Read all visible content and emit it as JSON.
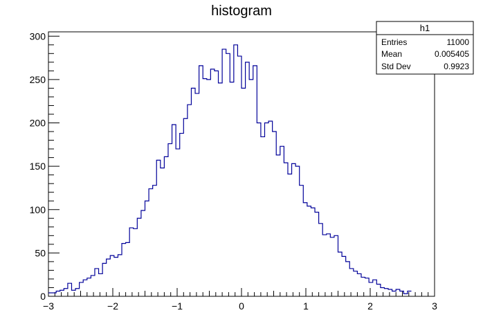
{
  "chart_data": {
    "type": "histogram",
    "title": "histogram",
    "xlabel": "",
    "ylabel": "",
    "xlim": [
      -3,
      3
    ],
    "ylim": [
      0,
      305
    ],
    "bin_width": 0.06,
    "bin_edges_start": -3,
    "x_ticks": [
      -3,
      -2,
      -1,
      0,
      1,
      2,
      3
    ],
    "x_tick_labels": [
      "−3",
      "−2",
      "−1",
      "0",
      "1",
      "2",
      "3"
    ],
    "y_ticks": [
      0,
      50,
      100,
      150,
      200,
      250,
      300
    ],
    "y_tick_labels": [
      "0",
      "50",
      "100",
      "150",
      "200",
      "250",
      "300"
    ],
    "line_color": "#000099",
    "values": [
      4,
      4,
      6,
      7,
      9,
      15,
      7,
      9,
      16,
      19,
      21,
      24,
      32,
      26,
      38,
      43,
      47,
      45,
      48,
      61,
      62,
      79,
      78,
      90,
      99,
      110,
      124,
      128,
      157,
      148,
      161,
      176,
      198,
      170,
      188,
      205,
      221,
      240,
      234,
      266,
      251,
      250,
      262,
      260,
      246,
      285,
      280,
      247,
      290,
      277,
      240,
      270,
      250,
      266,
      200,
      184,
      200,
      202,
      190,
      163,
      173,
      154,
      141,
      153,
      150,
      128,
      108,
      104,
      102,
      97,
      84,
      71,
      72,
      68,
      70,
      51,
      46,
      40,
      32,
      29,
      26,
      22,
      21,
      16,
      19,
      14,
      10,
      9,
      8,
      6,
      8,
      6,
      3,
      6
    ]
  },
  "stats_box": {
    "name": "h1",
    "rows": [
      {
        "label": "Entries",
        "value": "11000"
      },
      {
        "label": "Mean",
        "value": "0.005405"
      },
      {
        "label": "Std Dev",
        "value": "0.9923"
      }
    ]
  }
}
